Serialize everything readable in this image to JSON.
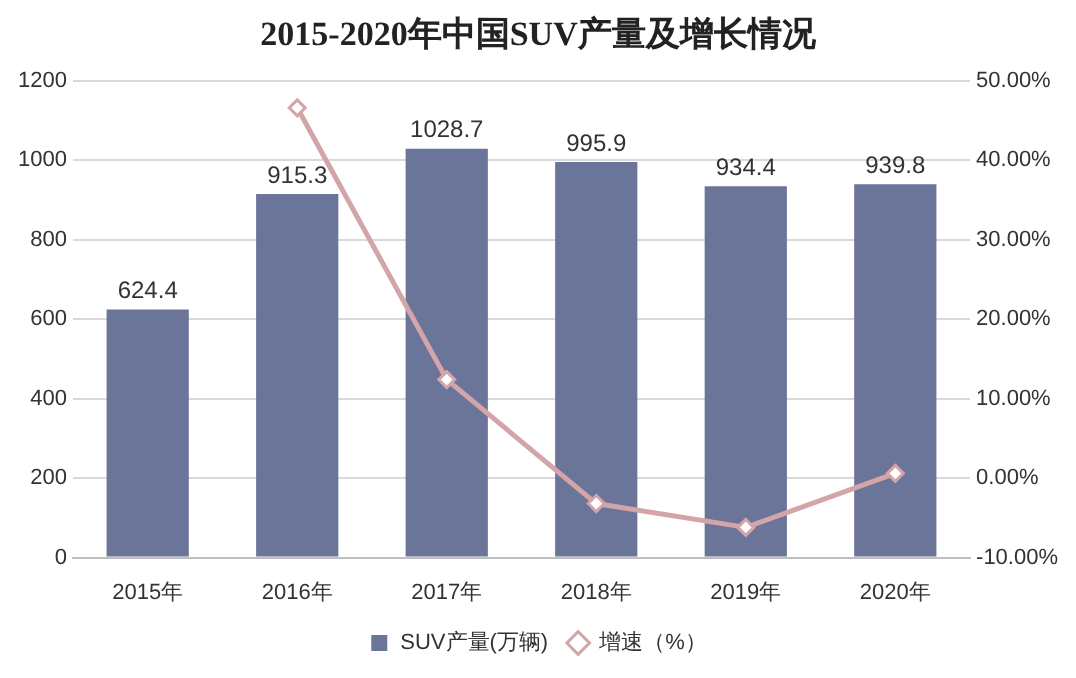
{
  "chart_data": {
    "type": "bar",
    "title": "2015-2020年中国SUV产量及增长情况",
    "categories": [
      "2015年",
      "2016年",
      "2017年",
      "2018年",
      "2019年",
      "2020年"
    ],
    "series": [
      {
        "name": "SUV产量(万辆)",
        "color": "#6b7499",
        "values": [
          624.4,
          915.3,
          1028.7,
          995.9,
          934.4,
          939.8
        ],
        "value_labels": [
          "624.4",
          "915.3",
          "1028.7",
          "995.9",
          "934.4",
          "939.8"
        ]
      },
      {
        "name": "增速（%）",
        "type": "line",
        "axis": "y2",
        "color": "#d4a5a8",
        "values": [
          null,
          46.6,
          12.4,
          -3.2,
          -6.2,
          0.6
        ]
      }
    ],
    "ylim": [
      0,
      1200
    ],
    "yticks": [
      0,
      200,
      400,
      600,
      800,
      1000,
      1200
    ],
    "y2lim": [
      -10,
      50
    ],
    "y2ticks": [
      {
        "value": -10,
        "label": "-10.00%"
      },
      {
        "value": 0,
        "label": "0.00%"
      },
      {
        "value": 10,
        "label": "10.00%"
      },
      {
        "value": 20,
        "label": "20.00%"
      },
      {
        "value": 30,
        "label": "30.00%"
      },
      {
        "value": 40,
        "label": "40.00%"
      },
      {
        "value": 50,
        "label": "50.00%"
      }
    ],
    "grid": "y",
    "legend": "bottom",
    "marker": "diamond",
    "line_style": "solid"
  }
}
